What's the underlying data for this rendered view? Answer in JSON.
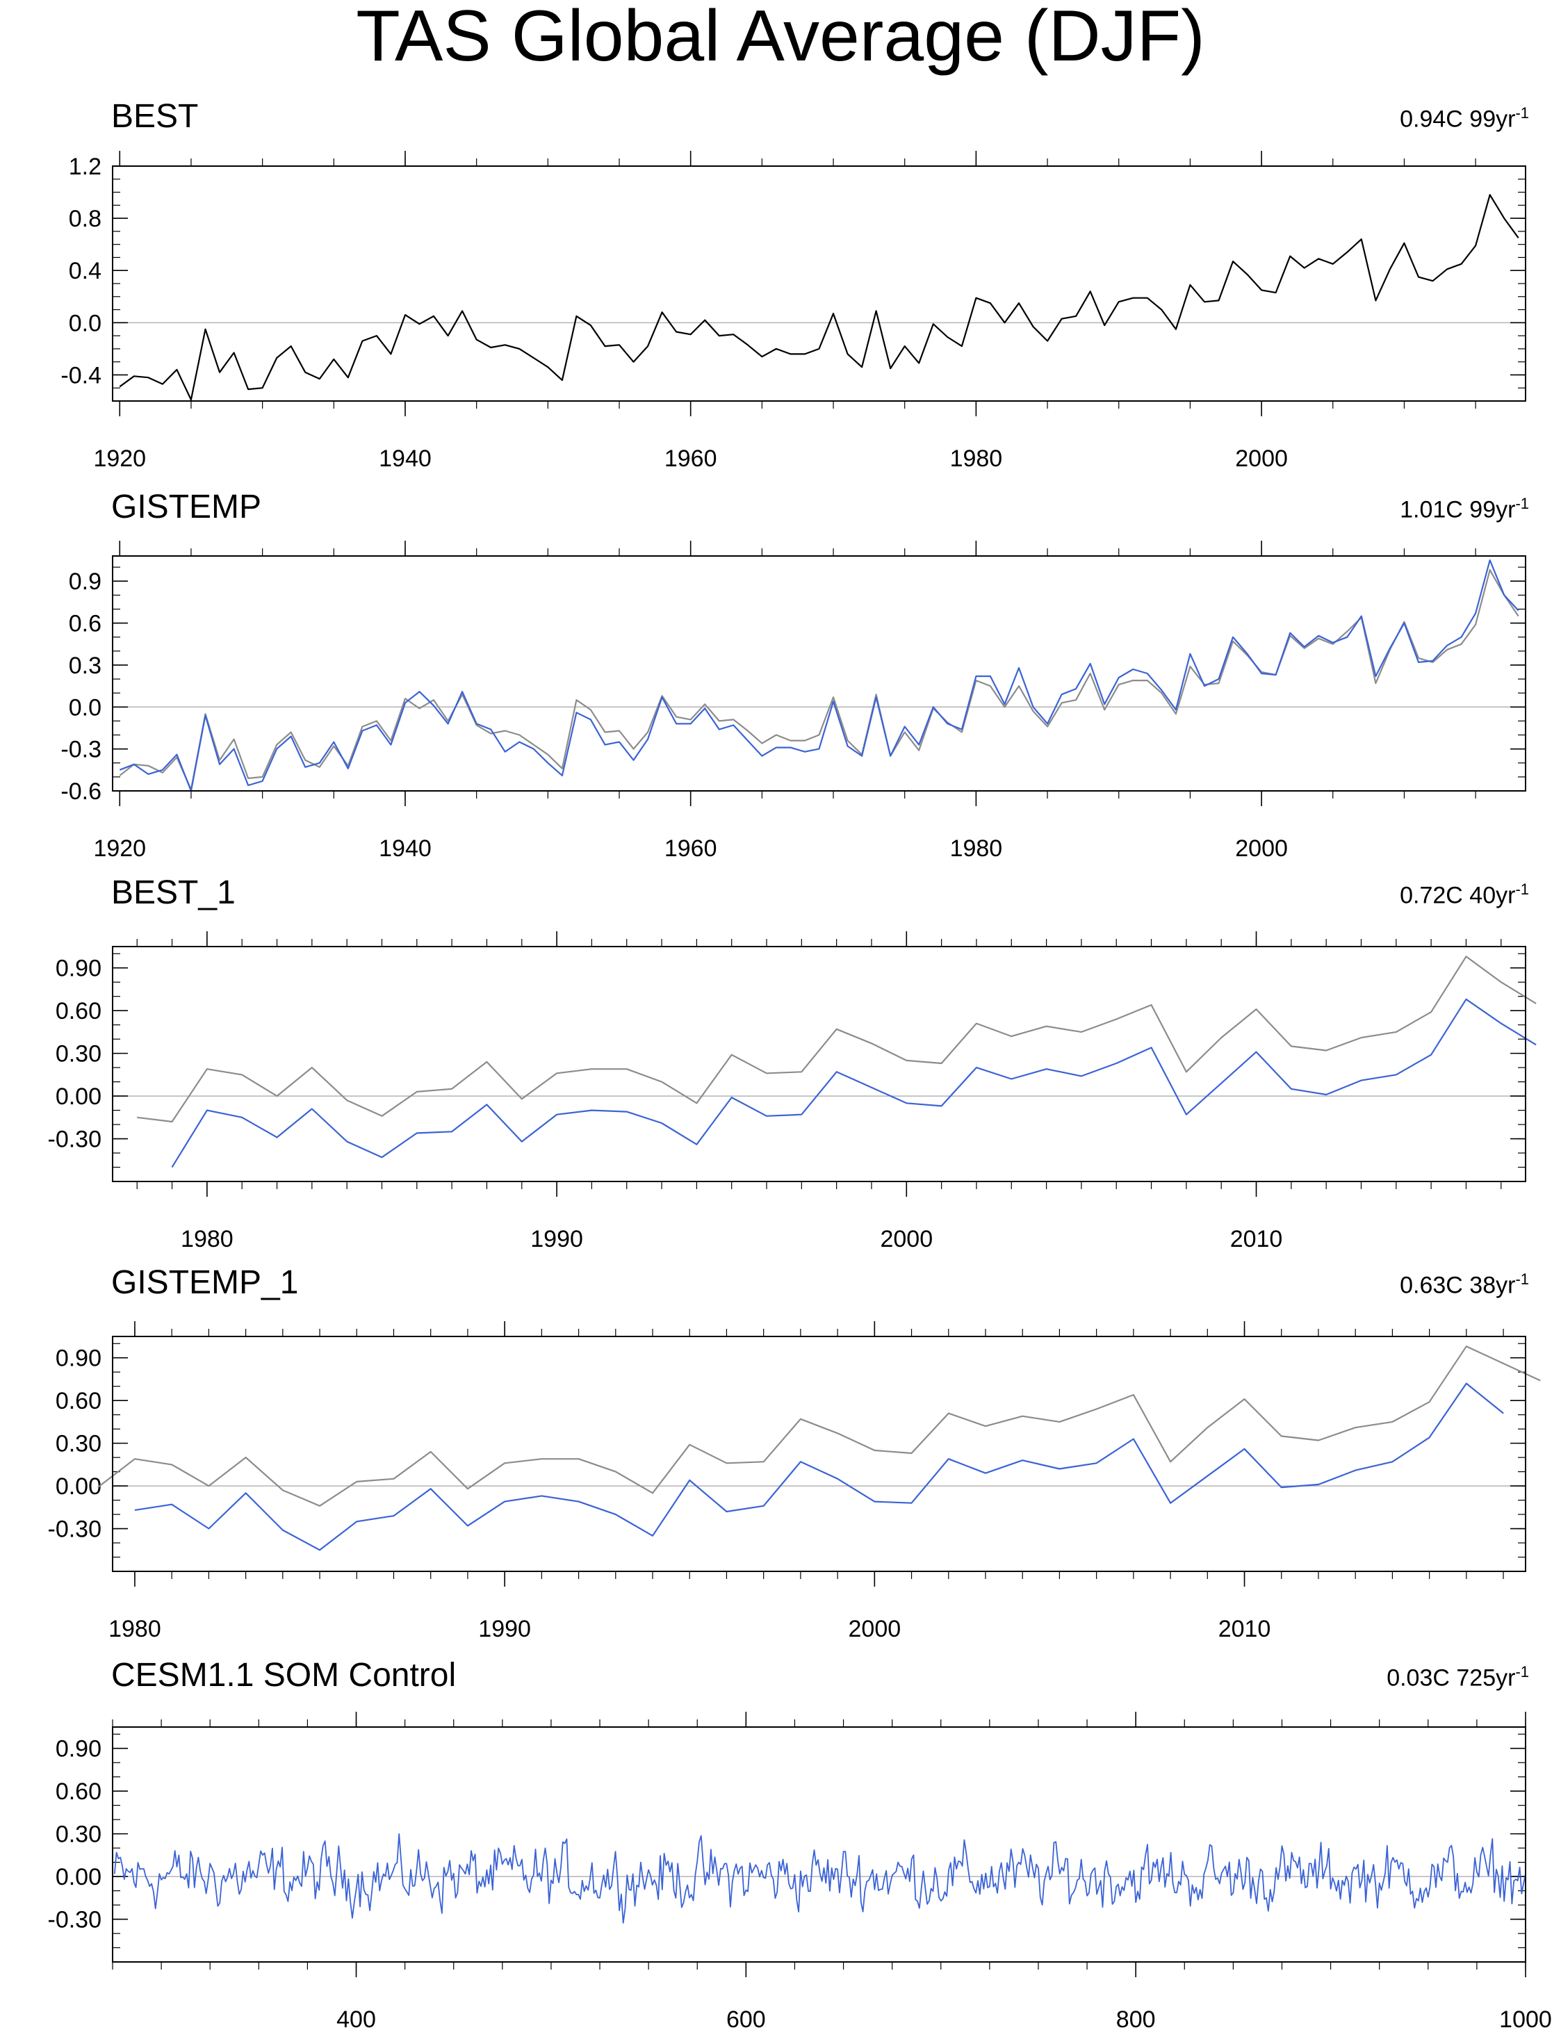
{
  "title": "TAS Global Average (DJF)",
  "colors": {
    "obs": "#000000",
    "gray": "#8c8c8c",
    "blue": "#3b63d6",
    "zero": "#b4b4b4"
  },
  "chart_data": [
    {
      "type": "line",
      "title": "BEST",
      "trend": {
        "value": "0.94C 99yr",
        "exp": "-1"
      },
      "xlim": [
        1919.5,
        2018.5
      ],
      "ylim": [
        -0.6,
        1.2
      ],
      "yticks": [
        -0.4,
        0.0,
        0.4,
        0.8,
        1.2
      ],
      "ytick_labels": [
        "-0.4",
        "0.0",
        "0.4",
        "0.8",
        "1.2"
      ],
      "xticks": [
        1920,
        1940,
        1960,
        1980,
        2000
      ],
      "minor_x": 5,
      "minor_y": 0.1,
      "x_start": 1920,
      "series": [
        {
          "name": "BEST",
          "color": "obs",
          "values": [
            -0.49,
            -0.41,
            -0.42,
            -0.47,
            -0.36,
            -0.59,
            -0.05,
            -0.38,
            -0.23,
            -0.51,
            -0.5,
            -0.27,
            -0.18,
            -0.38,
            -0.43,
            -0.28,
            -0.42,
            -0.14,
            -0.1,
            -0.24,
            0.06,
            -0.01,
            0.05,
            -0.1,
            0.09,
            -0.13,
            -0.19,
            -0.17,
            -0.2,
            -0.27,
            -0.34,
            -0.44,
            0.05,
            -0.02,
            -0.18,
            -0.17,
            -0.3,
            -0.18,
            0.08,
            -0.07,
            -0.09,
            0.02,
            -0.1,
            -0.09,
            -0.17,
            -0.26,
            -0.2,
            -0.24,
            -0.24,
            -0.2,
            0.07,
            -0.24,
            -0.34,
            0.09,
            -0.35,
            -0.18,
            -0.31,
            -0.01,
            -0.11,
            -0.18,
            0.19,
            0.15,
            0.0,
            0.15,
            -0.03,
            -0.14,
            0.03,
            0.05,
            0.24,
            -0.02,
            0.16,
            0.19,
            0.19,
            0.1,
            -0.05,
            0.29,
            0.16,
            0.17,
            0.47,
            0.37,
            0.25,
            0.23,
            0.51,
            0.42,
            0.49,
            0.45,
            0.54,
            0.64,
            0.17,
            0.41,
            0.61,
            0.35,
            0.32,
            0.41,
            0.45,
            0.59,
            0.98,
            0.8,
            0.65
          ]
        }
      ]
    },
    {
      "type": "line",
      "title": "GISTEMP",
      "trend": {
        "value": "1.01C 99yr",
        "exp": "-1"
      },
      "xlim": [
        1919.5,
        2018.5
      ],
      "ylim": [
        -0.6,
        1.08
      ],
      "yticks": [
        -0.6,
        -0.3,
        0.0,
        0.3,
        0.6,
        0.9
      ],
      "ytick_labels": [
        "-0.6",
        "-0.3",
        "0.0",
        "0.3",
        "0.6",
        "0.9"
      ],
      "xticks": [
        1920,
        1940,
        1960,
        1980,
        2000
      ],
      "minor_x": 5,
      "minor_y": 0.1,
      "x_start": 1920,
      "series": [
        {
          "name": "BEST",
          "color": "gray",
          "values": [
            -0.49,
            -0.41,
            -0.42,
            -0.47,
            -0.36,
            -0.59,
            -0.05,
            -0.38,
            -0.23,
            -0.51,
            -0.5,
            -0.27,
            -0.18,
            -0.38,
            -0.43,
            -0.28,
            -0.42,
            -0.14,
            -0.1,
            -0.24,
            0.06,
            -0.01,
            0.05,
            -0.1,
            0.09,
            -0.13,
            -0.19,
            -0.17,
            -0.2,
            -0.27,
            -0.34,
            -0.44,
            0.05,
            -0.02,
            -0.18,
            -0.17,
            -0.3,
            -0.18,
            0.08,
            -0.07,
            -0.09,
            0.02,
            -0.1,
            -0.09,
            -0.17,
            -0.26,
            -0.2,
            -0.24,
            -0.24,
            -0.2,
            0.07,
            -0.24,
            -0.34,
            0.09,
            -0.35,
            -0.18,
            -0.31,
            -0.01,
            -0.11,
            -0.18,
            0.19,
            0.15,
            0.0,
            0.15,
            -0.03,
            -0.14,
            0.03,
            0.05,
            0.24,
            -0.02,
            0.16,
            0.19,
            0.19,
            0.1,
            -0.05,
            0.29,
            0.16,
            0.17,
            0.47,
            0.37,
            0.25,
            0.23,
            0.51,
            0.42,
            0.49,
            0.45,
            0.54,
            0.64,
            0.17,
            0.41,
            0.61,
            0.35,
            0.32,
            0.41,
            0.45,
            0.59,
            0.98,
            0.8,
            0.65
          ]
        },
        {
          "name": "GISTEMP",
          "color": "blue",
          "values": [
            -0.45,
            -0.41,
            -0.48,
            -0.45,
            -0.34,
            -0.6,
            -0.06,
            -0.41,
            -0.3,
            -0.56,
            -0.53,
            -0.3,
            -0.21,
            -0.43,
            -0.4,
            -0.25,
            -0.44,
            -0.17,
            -0.13,
            -0.27,
            0.03,
            0.11,
            0.01,
            -0.12,
            0.11,
            -0.12,
            -0.16,
            -0.32,
            -0.25,
            -0.3,
            -0.4,
            -0.49,
            -0.04,
            -0.09,
            -0.27,
            -0.25,
            -0.38,
            -0.23,
            0.07,
            -0.12,
            -0.12,
            -0.01,
            -0.16,
            -0.13,
            -0.24,
            -0.35,
            -0.29,
            -0.29,
            -0.32,
            -0.3,
            0.04,
            -0.28,
            -0.35,
            0.07,
            -0.35,
            -0.14,
            -0.27,
            0.0,
            -0.12,
            -0.16,
            0.22,
            0.22,
            0.02,
            0.28,
            0.0,
            -0.12,
            0.09,
            0.13,
            0.31,
            0.02,
            0.21,
            0.27,
            0.24,
            0.12,
            -0.02,
            0.38,
            0.15,
            0.2,
            0.5,
            0.38,
            0.24,
            0.23,
            0.53,
            0.43,
            0.51,
            0.46,
            0.5,
            0.65,
            0.22,
            0.42,
            0.6,
            0.32,
            0.33,
            0.44,
            0.5,
            0.67,
            1.05,
            0.8,
            0.69
          ]
        }
      ]
    },
    {
      "type": "line",
      "title": "BEST_1",
      "trend": {
        "value": "0.72C 40yr",
        "exp": "-1"
      },
      "xlim": [
        1977.3,
        2017.7
      ],
      "ylim": [
        -0.6,
        1.05
      ],
      "yticks": [
        -0.3,
        0.0,
        0.3,
        0.6,
        0.9
      ],
      "ytick_labels": [
        "-0.30",
        "0.00",
        "0.30",
        "0.60",
        "0.90"
      ],
      "xticks": [
        1980,
        1990,
        2000,
        2010
      ],
      "minor_x": 1,
      "minor_y": 0.1,
      "gray_start": 1978,
      "x_start": 1979,
      "series": [
        {
          "name": "BEST",
          "color": "gray",
          "values": [
            -0.15,
            -0.18,
            0.19,
            0.15,
            0.0,
            0.2,
            -0.03,
            -0.14,
            0.03,
            0.05,
            0.24,
            -0.02,
            0.16,
            0.19,
            0.19,
            0.1,
            -0.05,
            0.29,
            0.16,
            0.17,
            0.47,
            0.37,
            0.25,
            0.23,
            0.51,
            0.42,
            0.49,
            0.45,
            0.54,
            0.64,
            0.17,
            0.41,
            0.61,
            0.35,
            0.32,
            0.41,
            0.45,
            0.59,
            0.98,
            0.8,
            0.65
          ]
        },
        {
          "name": "BEST_1",
          "color": "blue",
          "values": [
            -0.5,
            -0.1,
            -0.15,
            -0.29,
            -0.09,
            -0.32,
            -0.43,
            -0.26,
            -0.25,
            -0.06,
            -0.32,
            -0.13,
            -0.1,
            -0.11,
            -0.19,
            -0.34,
            -0.01,
            -0.14,
            -0.13,
            0.17,
            0.06,
            -0.05,
            -0.07,
            0.2,
            0.12,
            0.19,
            0.14,
            0.23,
            0.34,
            -0.13,
            0.09,
            0.31,
            0.05,
            0.01,
            0.11,
            0.15,
            0.29,
            0.68,
            0.51,
            0.36
          ]
        }
      ]
    },
    {
      "type": "line",
      "title": "GISTEMP_1",
      "trend": {
        "value": "0.63C 38yr",
        "exp": "-1"
      },
      "xlim": [
        1979.4,
        2017.6
      ],
      "ylim": [
        -0.6,
        1.05
      ],
      "yticks": [
        -0.3,
        0.0,
        0.3,
        0.6,
        0.9
      ],
      "ytick_labels": [
        "-0.30",
        "0.00",
        "0.30",
        "0.60",
        "0.90"
      ],
      "xticks": [
        1980,
        1990,
        2000,
        2010
      ],
      "minor_x": 1,
      "minor_y": 0.1,
      "gray_start": 1979,
      "x_start": 1980,
      "series": [
        {
          "name": "GISTEMP",
          "color": "gray",
          "values": [
            -0.01,
            0.19,
            0.15,
            0.0,
            0.2,
            -0.03,
            -0.14,
            0.03,
            0.05,
            0.24,
            -0.02,
            0.16,
            0.19,
            0.19,
            0.1,
            -0.05,
            0.29,
            0.16,
            0.17,
            0.47,
            0.37,
            0.25,
            0.23,
            0.51,
            0.42,
            0.49,
            0.45,
            0.54,
            0.64,
            0.17,
            0.41,
            0.61,
            0.35,
            0.32,
            0.41,
            0.45,
            0.59,
            0.98,
            0.86,
            0.74
          ]
        },
        {
          "name": "GISTEMP_1",
          "color": "blue",
          "values": [
            -0.17,
            -0.13,
            -0.3,
            -0.05,
            -0.31,
            -0.45,
            -0.25,
            -0.21,
            -0.02,
            -0.28,
            -0.11,
            -0.07,
            -0.11,
            -0.2,
            -0.35,
            0.04,
            -0.18,
            -0.14,
            0.17,
            0.05,
            -0.11,
            -0.12,
            0.19,
            0.09,
            0.18,
            0.12,
            0.16,
            0.33,
            -0.12,
            0.07,
            0.26,
            -0.01,
            0.01,
            0.11,
            0.17,
            0.34,
            0.72,
            0.51
          ]
        }
      ]
    },
    {
      "type": "line",
      "title": "CESM1.1 SOM Control",
      "trend": {
        "value": "0.03C 725yr",
        "exp": "-1"
      },
      "xlim": [
        275,
        1000
      ],
      "ylim": [
        -0.6,
        1.05
      ],
      "yticks": [
        -0.3,
        0.0,
        0.3,
        0.6,
        0.9
      ],
      "ytick_labels": [
        "-0.30",
        "0.00",
        "0.30",
        "0.60",
        "0.90"
      ],
      "xticks": [
        400,
        600,
        800,
        1000
      ],
      "minor_x": 25,
      "minor_y": 0.1,
      "x_start": 276,
      "series": [
        {
          "name": "CESM1.1 SOM Control",
          "color": "blue",
          "noise": true,
          "count": 725,
          "approx_range": [
            -0.38,
            0.31
          ]
        }
      ]
    }
  ]
}
